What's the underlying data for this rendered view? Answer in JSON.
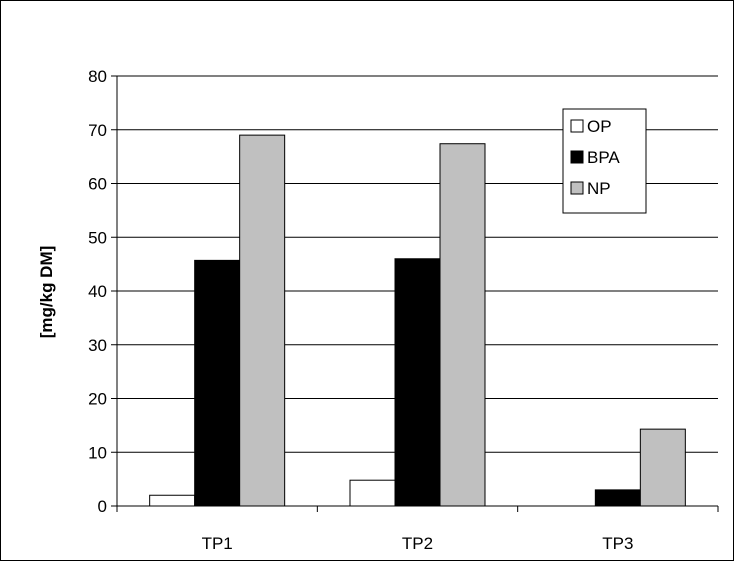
{
  "chart_data": {
    "type": "bar",
    "categories": [
      "TP1",
      "TP2",
      "TP3"
    ],
    "series": [
      {
        "name": "OP",
        "values": [
          2,
          4.8,
          0
        ],
        "color": "#ffffff"
      },
      {
        "name": "BPA",
        "values": [
          45.7,
          46,
          3
        ],
        "color": "#000000"
      },
      {
        "name": "NP",
        "values": [
          69,
          67.4,
          14.3
        ],
        "color": "#c0c0c0"
      }
    ],
    "ylabel": "[mg/kg DM]",
    "ylim": [
      0,
      80
    ],
    "yticks": [
      0,
      10,
      20,
      30,
      40,
      50,
      60,
      70,
      80
    ],
    "grid": true,
    "legend_position": "top-right"
  }
}
